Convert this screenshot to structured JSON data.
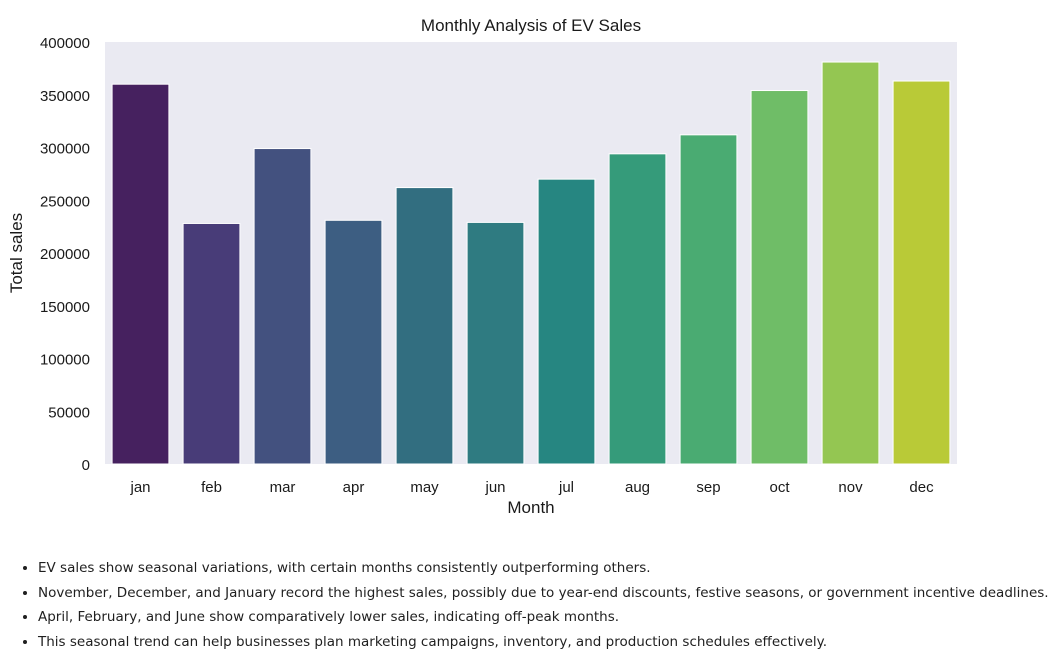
{
  "chart_data": {
    "type": "bar",
    "title": "Monthly Analysis of EV Sales",
    "xlabel": "Month",
    "ylabel": "Total sales",
    "categories": [
      "jan",
      "feb",
      "mar",
      "apr",
      "may",
      "jun",
      "jul",
      "aug",
      "sep",
      "oct",
      "nov",
      "dec"
    ],
    "values": [
      360000,
      228000,
      299000,
      231000,
      262000,
      229000,
      270000,
      294000,
      312000,
      354000,
      381000,
      363000
    ],
    "ylim": [
      0,
      400000
    ],
    "yticks": [
      "0",
      "50000",
      "100000",
      "150000",
      "200000",
      "250000",
      "300000",
      "350000",
      "400000"
    ],
    "grid": false,
    "palette": "viridis",
    "colors": [
      "#46215f",
      "#483c78",
      "#43517f",
      "#3d5e82",
      "#326e80",
      "#2f7b81",
      "#268681",
      "#359b7a",
      "#4aab72",
      "#6fbd67",
      "#94c652",
      "#b9ca37"
    ],
    "background": "#eaeaf2"
  },
  "notes": [
    "EV sales show seasonal variations, with certain months consistently outperforming others.",
    "November, December, and January record the highest sales, possibly due to year-end discounts, festive seasons, or government incentive deadlines.",
    "April, February, and June show comparatively lower sales, indicating off-peak months.",
    "This seasonal trend can help businesses plan marketing campaigns, inventory, and production schedules effectively."
  ]
}
